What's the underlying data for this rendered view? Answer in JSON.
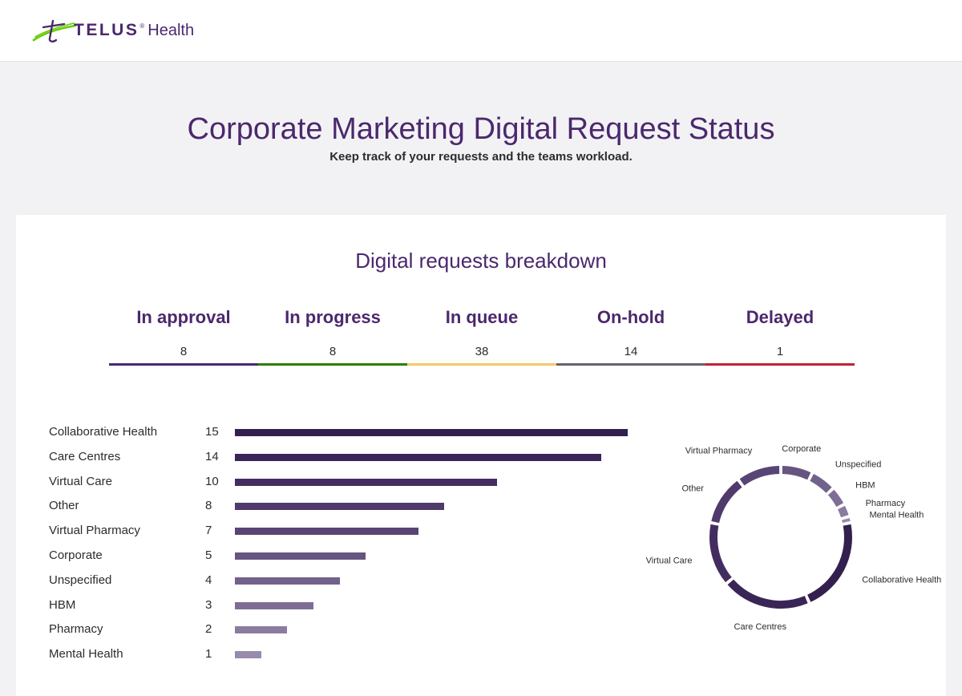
{
  "header": {
    "brand_name": "TELUS",
    "brand_reg": "®",
    "brand_product": "Health"
  },
  "page": {
    "title": "Corporate Marketing Digital Request Status",
    "subtitle": "Keep track of your requests and the teams workload."
  },
  "breakdown": {
    "title": "Digital requests breakdown",
    "statuses": [
      {
        "label": "In approval",
        "count": "8",
        "color": "#4b286d"
      },
      {
        "label": "In progress",
        "count": "8",
        "color": "#2b8000"
      },
      {
        "label": "In queue",
        "count": "38",
        "color": "#f2c96a"
      },
      {
        "label": "On-hold",
        "count": "14",
        "color": "#66636c"
      },
      {
        "label": "Delayed",
        "count": "1",
        "color": "#c12335"
      }
    ]
  },
  "chart_data": {
    "type": "bar",
    "orientation": "horizontal",
    "categories": [
      "Collaborative Health",
      "Care Centres",
      "Virtual Care",
      "Other",
      "Virtual Pharmacy",
      "Corporate",
      "Unspecified",
      "HBM",
      "Pharmacy",
      "Mental Health"
    ],
    "values": [
      15,
      14,
      10,
      8,
      7,
      5,
      4,
      3,
      2,
      1
    ],
    "value_labels": [
      "15",
      "14",
      "10",
      "8",
      "7",
      "5",
      "4",
      "3",
      "2",
      "1"
    ],
    "colors": [
      "#33204f",
      "#3a2557",
      "#432d60",
      "#4f3a6b",
      "#584576",
      "#665481",
      "#72618b",
      "#7e6e96",
      "#8a7ba1",
      "#978aab"
    ],
    "donut": {
      "type": "pie",
      "style": "donut",
      "start_category": "Corporate",
      "order": [
        "Corporate",
        "Unspecified",
        "HBM",
        "Pharmacy",
        "Mental Health",
        "Collaborative Health",
        "Care Centres",
        "Virtual Care",
        "Other",
        "Virtual Pharmacy"
      ]
    }
  }
}
